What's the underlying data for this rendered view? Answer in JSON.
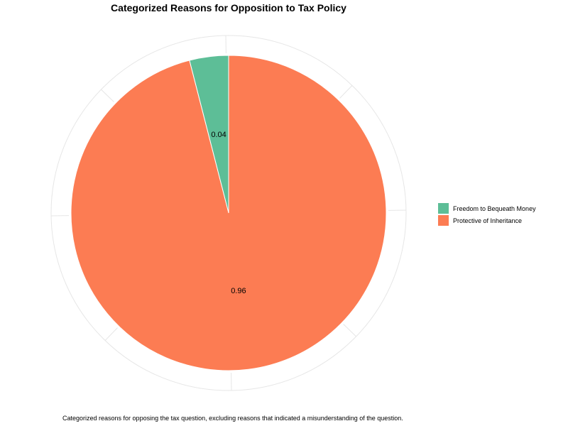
{
  "chart_data": {
    "type": "pie",
    "title": "Categorized Reasons for Opposition to Tax Policy",
    "caption": "Categorized reasons for opposing the tax question, excluding reasons that indicated a misunderstanding of the question.",
    "slices": [
      {
        "label": "Freedom to Bequeath Money",
        "value": 0.04,
        "display": "0.04",
        "color": "#5DBE97"
      },
      {
        "label": "Protective of Inheritance",
        "value": 0.96,
        "display": "0.96",
        "color": "#FC7C53"
      }
    ],
    "legend_position": "right",
    "grid": true
  }
}
